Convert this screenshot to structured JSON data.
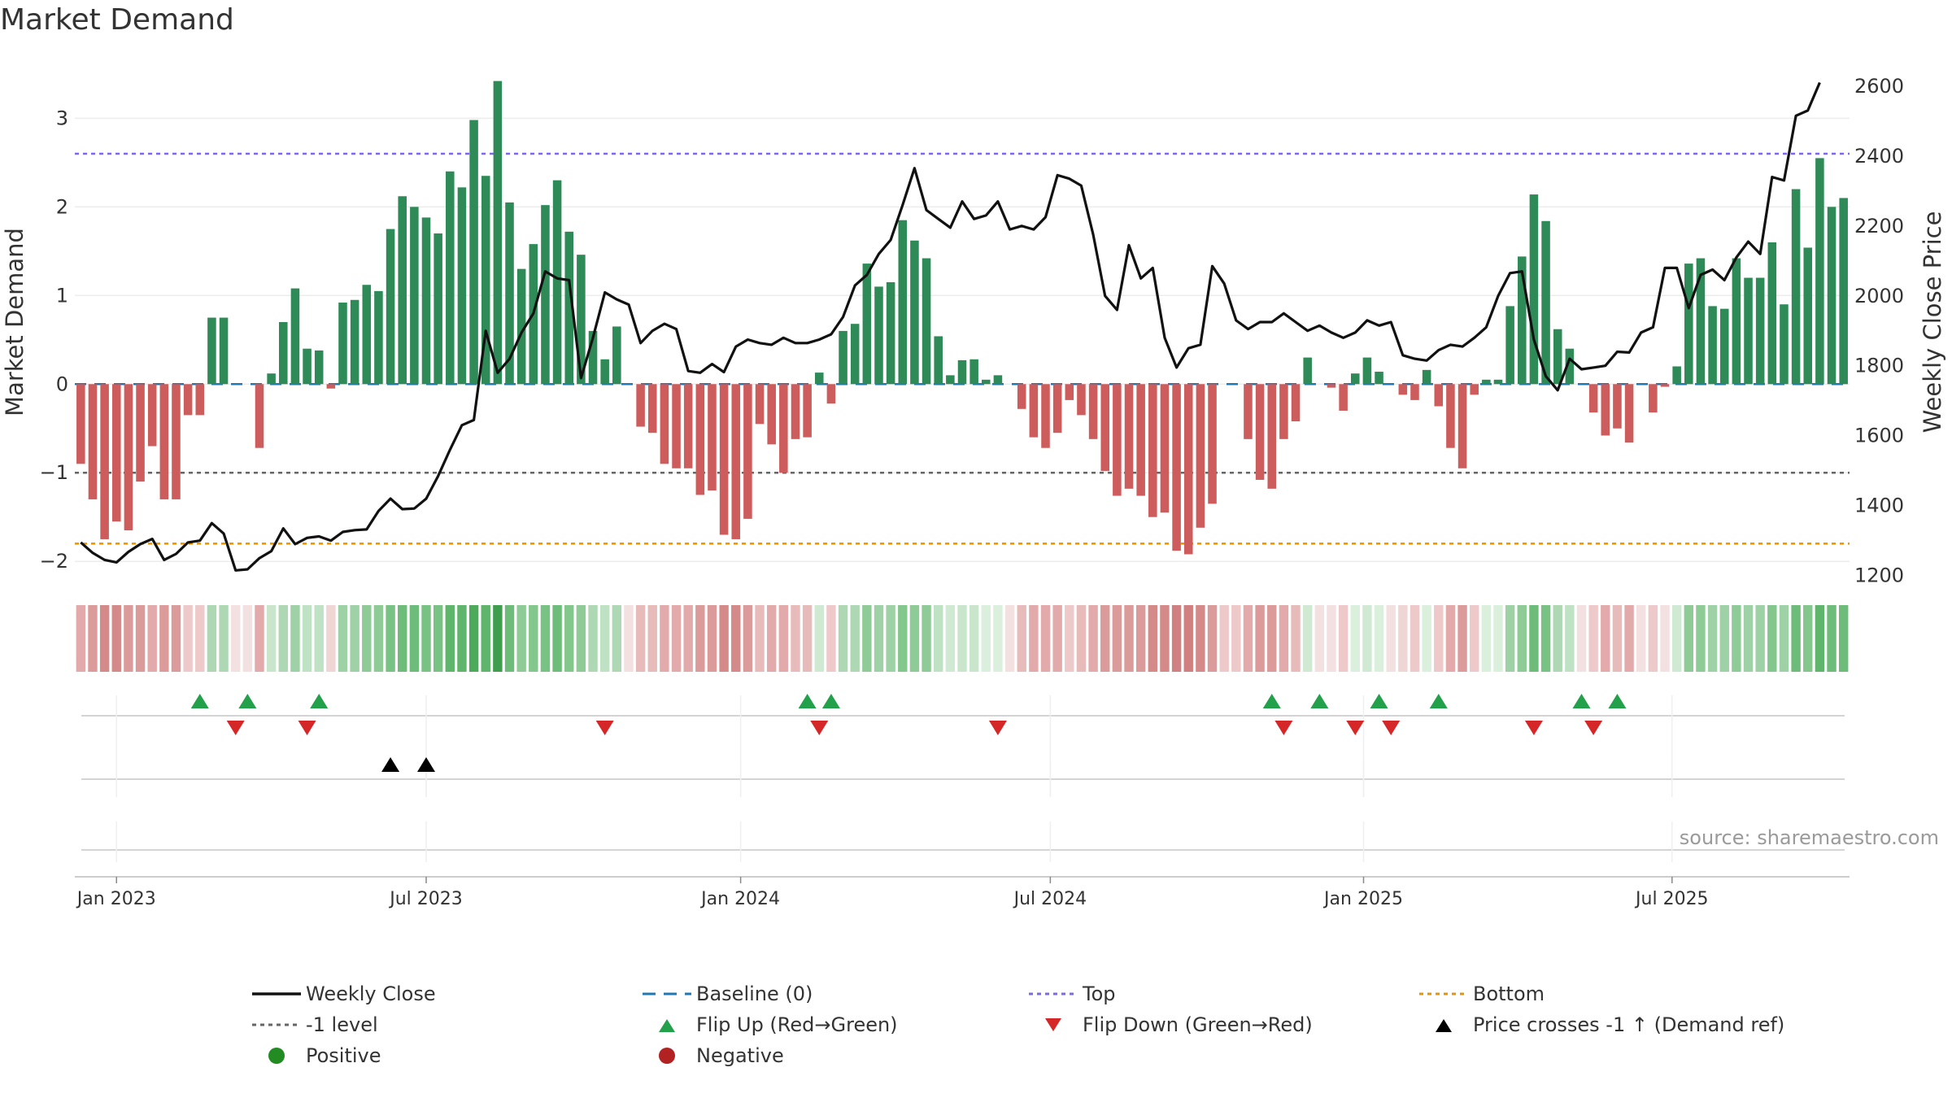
{
  "title": "Market Demand",
  "source": "source: sharemaestro.com",
  "colors": {
    "positive_bar": "#2e8b57",
    "negative_bar": "#cd5c5c",
    "price_line": "#111111",
    "baseline": "#1f77b4",
    "top": "#7b68ee",
    "bottom": "#e69500",
    "minus1": "#666666",
    "flip_up": "#22a04a",
    "flip_down": "#d62728",
    "price_cross": "#000000",
    "positive_dot": "#228b22",
    "negative_dot": "#b22222"
  },
  "chart_data": {
    "type": "bar",
    "title": "Market Demand",
    "ylabel": "Market Demand",
    "y2label": "Weekly Close Price",
    "ylim": [
      -2.2,
      3.6
    ],
    "y2lim": [
      1190,
      2660
    ],
    "yticks": [
      -2,
      -1,
      0,
      1,
      2,
      3
    ],
    "ytick_labels": [
      "−2",
      "−1",
      "0",
      "1",
      "2",
      "3"
    ],
    "y2ticks": [
      1200,
      1400,
      1600,
      1800,
      2000,
      2200,
      2400,
      2600
    ],
    "xtick_labels": [
      "Jan 2023",
      "Jul 2023",
      "Jan 2024",
      "Jul 2024",
      "Jan 2025",
      "Jul 2025"
    ],
    "xtick_weeks": [
      3,
      29,
      55.4,
      81.4,
      107.7,
      133.6
    ],
    "reference_lines": {
      "top": 2.6,
      "minus1": -1,
      "bottom": -1.8,
      "baseline": 0
    },
    "demand": [
      -0.9,
      -1.3,
      -1.75,
      -1.55,
      -1.65,
      -1.1,
      -0.7,
      -1.3,
      -1.3,
      -0.35,
      -0.35,
      0.75,
      0.75,
      0,
      0,
      -0.72,
      0.12,
      0.7,
      1.08,
      0.4,
      0.38,
      -0.05,
      0.92,
      0.95,
      1.12,
      1.05,
      1.75,
      2.12,
      2.0,
      1.88,
      1.7,
      2.4,
      2.22,
      2.98,
      2.35,
      3.42,
      2.05,
      1.3,
      1.58,
      2.02,
      2.3,
      1.72,
      1.46,
      0.6,
      0.28,
      0.65,
      0,
      -0.48,
      -0.55,
      -0.9,
      -0.95,
      -0.95,
      -1.25,
      -1.2,
      -1.7,
      -1.75,
      -1.52,
      -0.45,
      -0.68,
      -1.0,
      -0.62,
      -0.6,
      0.13,
      -0.22,
      0.6,
      0.68,
      1.36,
      1.1,
      1.15,
      1.85,
      1.62,
      1.42,
      0.54,
      0.1,
      0.27,
      0.28,
      0.05,
      0.1,
      0,
      -0.28,
      -0.6,
      -0.72,
      -0.55,
      -0.18,
      -0.35,
      -0.62,
      -0.98,
      -1.26,
      -1.18,
      -1.26,
      -1.5,
      -1.45,
      -1.88,
      -1.92,
      -1.62,
      -1.35,
      0,
      0,
      -0.62,
      -1.08,
      -1.18,
      -0.62,
      -0.42,
      0.3,
      0,
      -0.04,
      -0.3,
      0.12,
      0.3,
      0.14,
      0,
      -0.12,
      -0.18,
      0.16,
      -0.25,
      -0.72,
      -0.95,
      -0.12,
      0.05,
      0.05,
      0.88,
      1.44,
      2.14,
      1.84,
      0.62,
      0.4,
      0,
      -0.32,
      -0.58,
      -0.5,
      -0.66,
      0,
      -0.32,
      -0.03,
      0.2,
      1.36,
      1.42,
      0.88,
      0.85,
      1.42,
      1.2,
      1.2,
      1.6,
      0.9,
      2.2,
      1.54,
      2.55,
      2.0,
      2.1
    ],
    "price": [
      1295,
      1265,
      1245,
      1238,
      1268,
      1290,
      1305,
      1245,
      1262,
      1295,
      1300,
      1350,
      1320,
      1215,
      1218,
      1250,
      1270,
      1335,
      1290,
      1308,
      1312,
      1300,
      1325,
      1330,
      1332,
      1385,
      1420,
      1390,
      1392,
      1420,
      1485,
      1560,
      1630,
      1645,
      1900,
      1780,
      1820,
      1895,
      1950,
      2070,
      2050,
      2045,
      1765,
      1880,
      2010,
      1990,
      1975,
      1865,
      1900,
      1920,
      1905,
      1785,
      1780,
      1805,
      1782,
      1855,
      1875,
      1865,
      1860,
      1880,
      1865,
      1865,
      1875,
      1890,
      1940,
      2030,
      2060,
      2120,
      2160,
      2260,
      2365,
      2245,
      2220,
      2195,
      2270,
      2220,
      2230,
      2270,
      2190,
      2200,
      2190,
      2225,
      2345,
      2335,
      2315,
      2175,
      2000,
      1960,
      2145,
      2050,
      2080,
      1880,
      1795,
      1850,
      1860,
      2085,
      2035,
      1930,
      1905,
      1925,
      1925,
      1950,
      1925,
      1900,
      1915,
      1895,
      1880,
      1895,
      1930,
      1915,
      1925,
      1830,
      1820,
      1815,
      1845,
      1860,
      1855,
      1880,
      1910,
      2000,
      2065,
      2070,
      1875,
      1770,
      1730,
      1820,
      1790,
      1795,
      1800,
      1840,
      1838,
      1895,
      1910,
      2080,
      2080,
      1965,
      2060,
      2075,
      2045,
      2110,
      2155,
      2120,
      2340,
      2330,
      2515,
      2530,
      2610
    ]
  },
  "indicator_strip": {
    "colors": [
      "#e2aaaa",
      "#dc9b9b",
      "#d58a8a",
      "#d58a8a",
      "#dc9b9b",
      "#dc9b9b",
      "#e2aaaa",
      "#dc9b9b",
      "#dc9b9b",
      "#eec9c9",
      "#eec9c9",
      "#aed8b4",
      "#aed8b4",
      "#f3e0e0",
      "#f3e0e0",
      "#e2aaaa",
      "#c9e6cc",
      "#aed8b4",
      "#9ed1a5",
      "#bfe1c4",
      "#bfe1c4",
      "#f0d5d5",
      "#9ed1a5",
      "#9ed1a5",
      "#8fcb97",
      "#8fcb97",
      "#78c283",
      "#6dbc79",
      "#6dbc79",
      "#78c283",
      "#78c283",
      "#5eb56b",
      "#5eb56b",
      "#4caa5a",
      "#5eb56b",
      "#3e9e4d",
      "#6dbc79",
      "#8fcb97",
      "#83c78c",
      "#78c283",
      "#6dbc79",
      "#83c78c",
      "#8fcb97",
      "#aed8b4",
      "#bfe1c4",
      "#aed8b4",
      "#f3e0e0",
      "#e8bbbb",
      "#e8bbbb",
      "#e2aaaa",
      "#e2aaaa",
      "#e2aaaa",
      "#dc9b9b",
      "#dc9b9b",
      "#d58a8a",
      "#d58a8a",
      "#dc9b9b",
      "#e8bbbb",
      "#e2aaaa",
      "#e2aaaa",
      "#e8bbbb",
      "#e8bbbb",
      "#cfe9d3",
      "#eec9c9",
      "#aed8b4",
      "#aed8b4",
      "#8fcb97",
      "#9ed1a5",
      "#9ed1a5",
      "#83c78c",
      "#8fcb97",
      "#8fcb97",
      "#bfe1c4",
      "#cfe9d3",
      "#c9e6cc",
      "#c9e6cc",
      "#daf0dd",
      "#daf0dd",
      "#f3e0e0",
      "#e8bbbb",
      "#e2aaaa",
      "#e2aaaa",
      "#e2aaaa",
      "#eec9c9",
      "#e8bbbb",
      "#e2aaaa",
      "#dc9b9b",
      "#dc9b9b",
      "#dc9b9b",
      "#dc9b9b",
      "#d58a8a",
      "#d58a8a",
      "#d08080",
      "#d08080",
      "#d58a8a",
      "#dc9b9b",
      "#eec9c9",
      "#eec9c9",
      "#e2aaaa",
      "#dc9b9b",
      "#dc9b9b",
      "#e2aaaa",
      "#e8bbbb",
      "#cfe9d3",
      "#f3e0e0",
      "#f3e0e0",
      "#eec9c9",
      "#daf0dd",
      "#cfe9d3",
      "#daf0dd",
      "#f3e0e0",
      "#f0d5d5",
      "#eec9c9",
      "#daf0dd",
      "#eec9c9",
      "#e2aaaa",
      "#dc9b9b",
      "#eec9c9",
      "#daf0dd",
      "#daf0dd",
      "#9ed1a5",
      "#8fcb97",
      "#6dbc79",
      "#78c283",
      "#aed8b4",
      "#bfe1c4",
      "#f3e0e0",
      "#eec9c9",
      "#e2aaaa",
      "#e8bbbb",
      "#e2aaaa",
      "#f3e0e0",
      "#eec9c9",
      "#f3e0e0",
      "#cfe9d3",
      "#8fcb97",
      "#8fcb97",
      "#9ed1a5",
      "#9ed1a5",
      "#8fcb97",
      "#9ed1a5",
      "#9ed1a5",
      "#83c78c",
      "#9ed1a5",
      "#6dbc79",
      "#83c78c",
      "#5eb56b",
      "#6dbc79",
      "#6dbc79"
    ]
  },
  "events": {
    "flip_up": [
      10,
      14,
      20,
      61,
      63,
      100,
      104,
      109,
      114,
      126,
      129
    ],
    "flip_down": [
      13,
      19,
      44,
      62,
      77,
      101,
      107,
      110,
      122,
      127
    ],
    "price_cross": [
      26,
      29
    ]
  },
  "legend": [
    {
      "label": "Weekly Close",
      "symbol": "line-solid",
      "color": "#111111"
    },
    {
      "label": "Baseline (0)",
      "symbol": "line-dash",
      "color": "#1f77b4"
    },
    {
      "label": "Top",
      "symbol": "line-dot",
      "color": "#7b68ee"
    },
    {
      "label": "Bottom",
      "symbol": "line-dot",
      "color": "#e69500"
    },
    {
      "label": "-1 level",
      "symbol": "line-dot",
      "color": "#666666"
    },
    {
      "label": "Flip Up (Red→Green)",
      "symbol": "tri-up",
      "color": "#22a04a"
    },
    {
      "label": "Flip Down (Green→Red)",
      "symbol": "tri-down",
      "color": "#d62728"
    },
    {
      "label": "Price crosses -1 ↑ (Demand ref)",
      "symbol": "tri-up",
      "color": "#000000"
    },
    {
      "label": "Positive",
      "symbol": "dot",
      "color": "#228b22"
    },
    {
      "label": "Negative",
      "symbol": "dot",
      "color": "#b22222"
    }
  ]
}
